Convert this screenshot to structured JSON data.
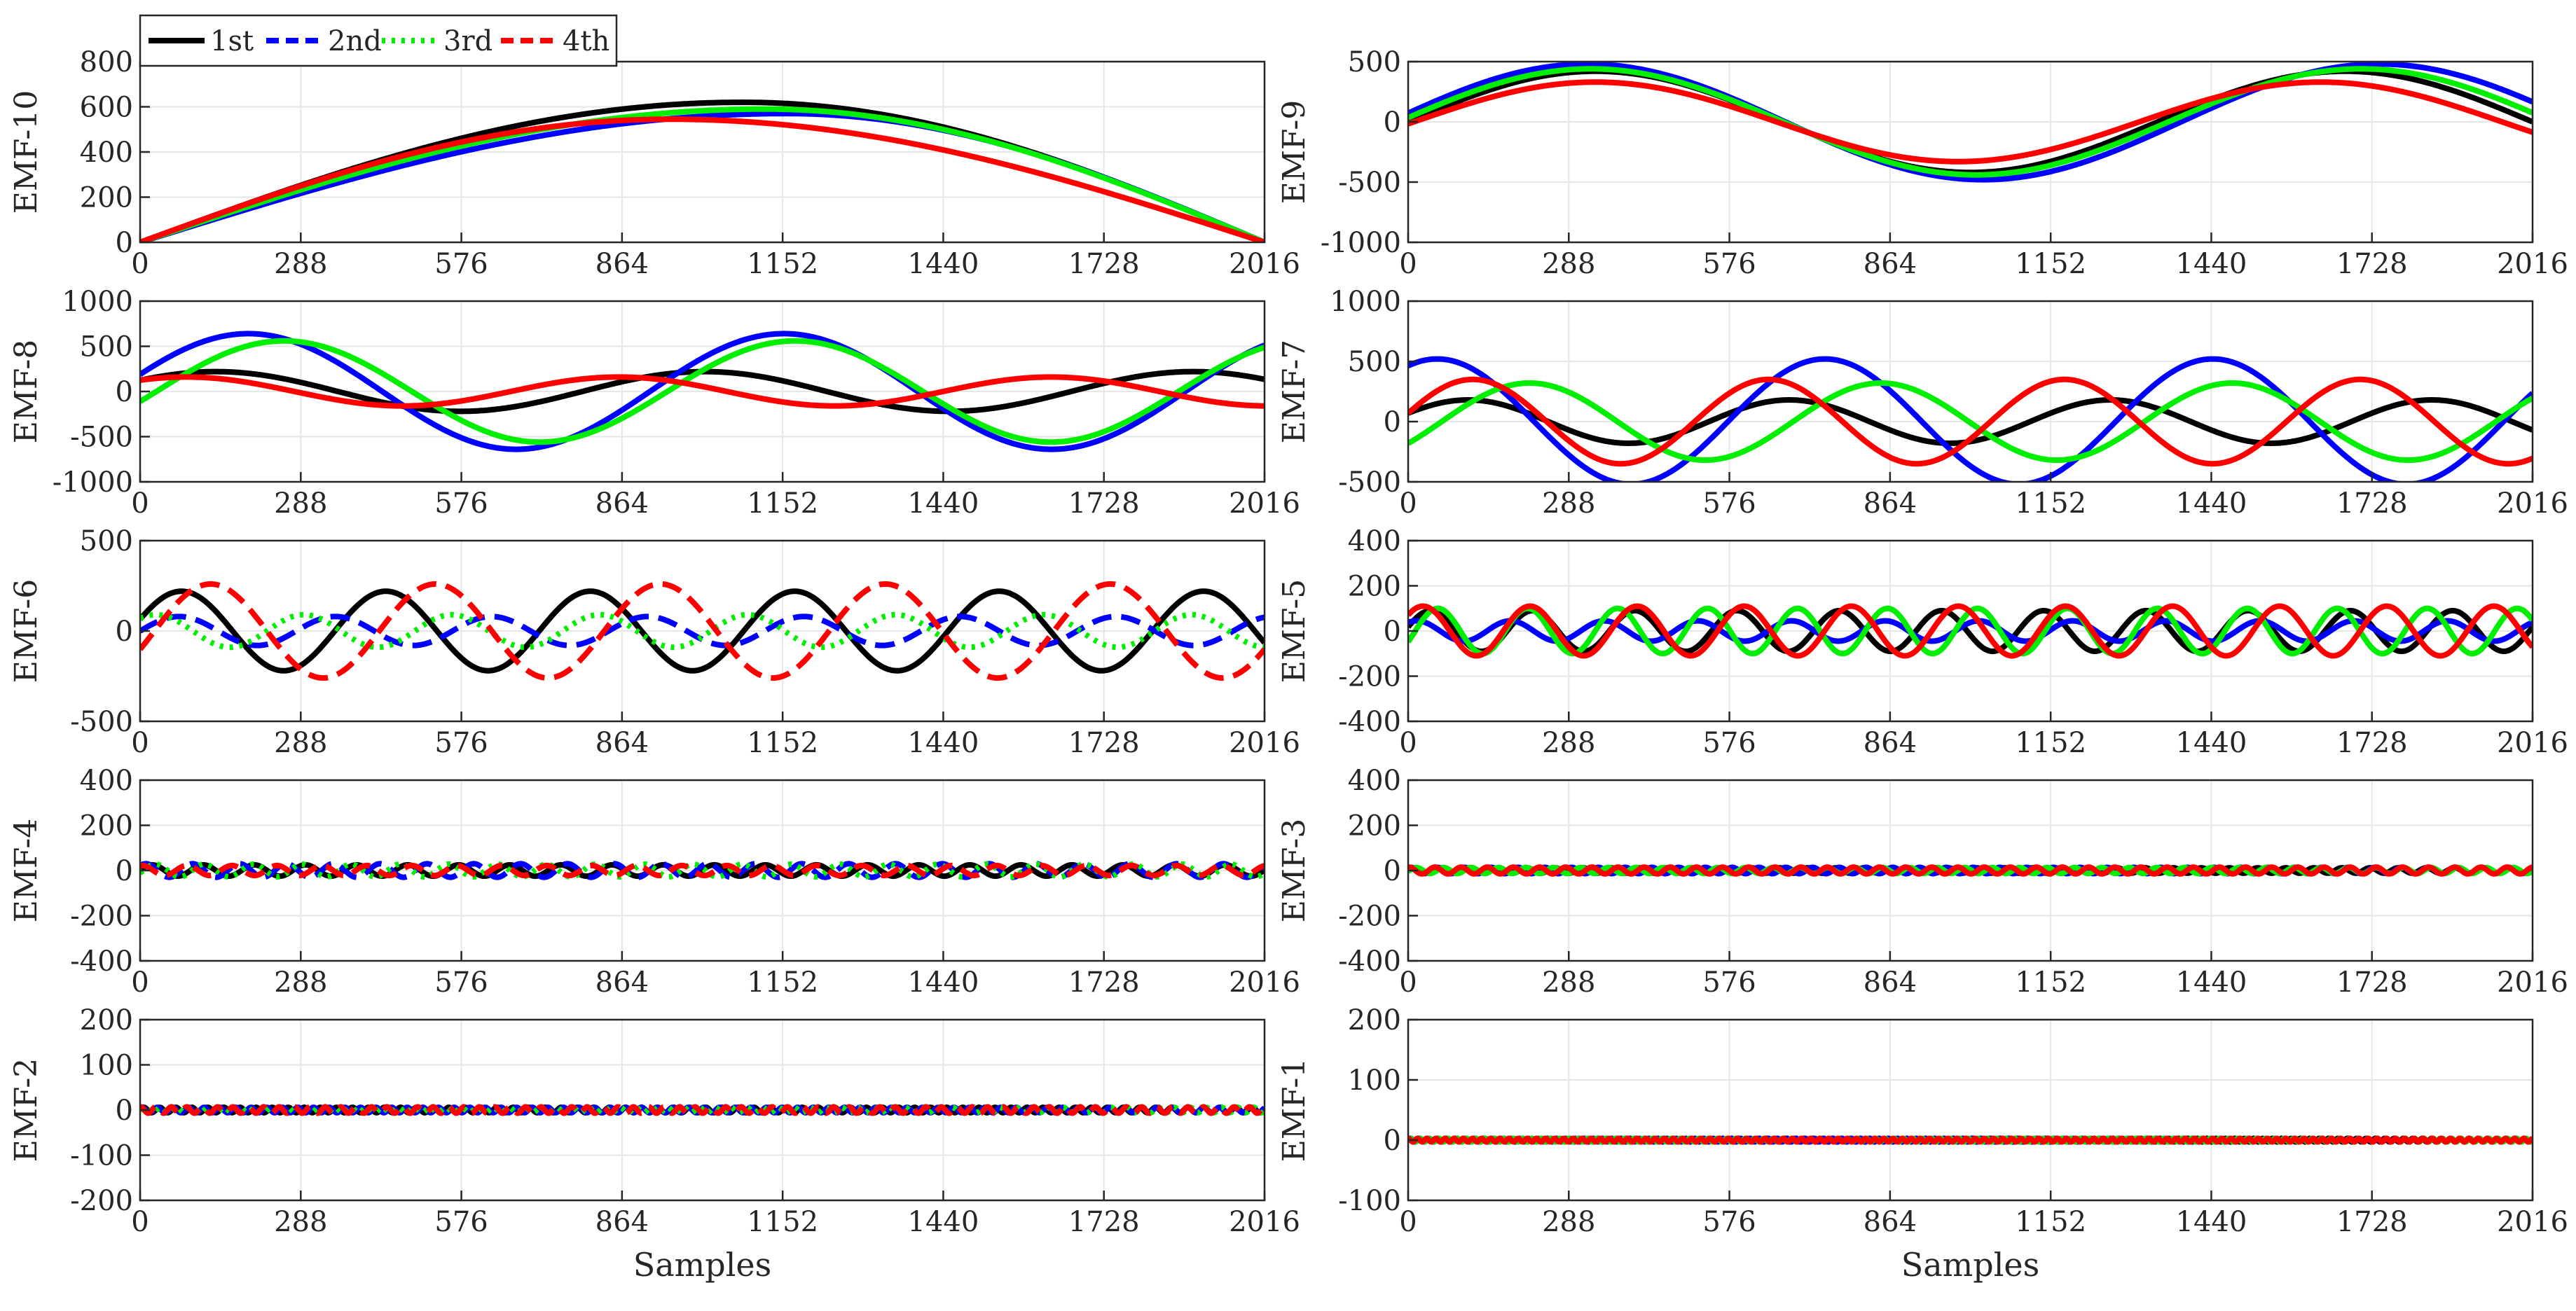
{
  "chart_data": {
    "type": "line",
    "sample_count": 2016,
    "x_ticks": [
      0,
      288,
      576,
      864,
      1152,
      1440,
      1728,
      2016
    ],
    "xlabel": "Samples",
    "legend": {
      "placement": "top-left",
      "entries": [
        {
          "name": "1st",
          "color": "#000000",
          "dash": "solid"
        },
        {
          "name": "2nd",
          "color": "#0000ff",
          "dash": "dashed"
        },
        {
          "name": "3rd",
          "color": "#00ee00",
          "dash": "dotted"
        },
        {
          "name": "4th",
          "color": "#ff0000",
          "dash": "dashed"
        }
      ]
    },
    "panels": [
      {
        "id": "emf10",
        "ylabel": "EMF-10",
        "ylim": [
          0,
          800
        ],
        "yticks": [
          0,
          200,
          400,
          600,
          800
        ],
        "show_xlabel": false,
        "line_styles": [
          "solid",
          "solid",
          "solid",
          "solid"
        ],
        "series": [
          {
            "name": "1st",
            "color": "#000000",
            "type": "arch",
            "params": {
              "amp": 620,
              "peak": 1080
            }
          },
          {
            "name": "2nd",
            "color": "#0000ff",
            "type": "arch",
            "params": {
              "amp": 570,
              "peak": 1160
            }
          },
          {
            "name": "3rd",
            "color": "#00ee00",
            "type": "arch",
            "params": {
              "amp": 590,
              "peak": 1120
            }
          },
          {
            "name": "4th",
            "color": "#ff0000",
            "type": "arch",
            "params": {
              "amp": 545,
              "peak": 950
            }
          }
        ]
      },
      {
        "id": "emf9",
        "ylabel": "EMF-9",
        "ylim": [
          -1000,
          500
        ],
        "yticks": [
          -1000,
          -500,
          0,
          500
        ],
        "show_xlabel": false,
        "line_styles": [
          "solid",
          "solid",
          "solid",
          "solid"
        ],
        "series": [
          {
            "name": "1st",
            "color": "#000000",
            "type": "sine",
            "params": {
              "amp": 420,
              "cycles": 1.5,
              "phase": 0
            }
          },
          {
            "name": "2nd",
            "color": "#0000ff",
            "type": "sine",
            "params": {
              "amp": 480,
              "cycles": 1.42,
              "phase": 0.15
            }
          },
          {
            "name": "3rd",
            "color": "#00ee00",
            "type": "sine",
            "params": {
              "amp": 440,
              "cycles": 1.46,
              "phase": 0.08
            }
          },
          {
            "name": "4th",
            "color": "#ff0000",
            "type": "sine",
            "params": {
              "amp": 330,
              "cycles": 1.55,
              "phase": -0.05
            }
          }
        ]
      },
      {
        "id": "emf8",
        "ylabel": "EMF-8",
        "ylim": [
          -1000,
          1000
        ],
        "yticks": [
          -1000,
          -500,
          0,
          500,
          1000
        ],
        "show_xlabel": false,
        "line_styles": [
          "solid",
          "solid",
          "solid",
          "solid"
        ],
        "series": [
          {
            "name": "1st",
            "color": "#000000",
            "type": "sine",
            "params": {
              "amp": 220,
              "cycles": 2.3,
              "phase": 0.6
            }
          },
          {
            "name": "2nd",
            "color": "#0000ff",
            "type": "sine",
            "params": {
              "amp": 640,
              "cycles": 2.1,
              "phase": 0.3
            }
          },
          {
            "name": "3rd",
            "color": "#00ee00",
            "type": "sine",
            "params": {
              "amp": 560,
              "cycles": 2.2,
              "phase": -0.2
            }
          },
          {
            "name": "4th",
            "color": "#ff0000",
            "type": "sine",
            "params": {
              "amp": 160,
              "cycles": 2.6,
              "phase": 0.9
            }
          }
        ]
      },
      {
        "id": "emf7",
        "ylabel": "EMF-7",
        "ylim": [
          -500,
          1000
        ],
        "yticks": [
          -500,
          0,
          500,
          1000
        ],
        "show_xlabel": false,
        "line_styles": [
          "solid",
          "solid",
          "solid",
          "solid"
        ],
        "series": [
          {
            "name": "1st",
            "color": "#000000",
            "type": "sine",
            "params": {
              "amp": 180,
              "cycles": 3.5,
              "phase": 0.4
            }
          },
          {
            "name": "2nd",
            "color": "#0000ff",
            "type": "sine",
            "params": {
              "amp": 520,
              "cycles": 2.9,
              "phase": 1.1
            }
          },
          {
            "name": "3rd",
            "color": "#00ee00",
            "type": "sine",
            "params": {
              "amp": 320,
              "cycles": 3.2,
              "phase": -0.6
            }
          },
          {
            "name": "4th",
            "color": "#ff0000",
            "type": "sine",
            "params": {
              "amp": 350,
              "cycles": 3.8,
              "phase": 0.2
            }
          }
        ]
      },
      {
        "id": "emf6",
        "ylabel": "EMF-6",
        "ylim": [
          -500,
          500
        ],
        "yticks": [
          -500,
          0,
          500
        ],
        "show_xlabel": false,
        "line_styles": [
          "solid",
          "dashed",
          "dotted",
          "dashed"
        ],
        "series": [
          {
            "name": "1st",
            "color": "#000000",
            "type": "sine",
            "params": {
              "amp": 220,
              "cycles": 5.5,
              "phase": 0.3
            }
          },
          {
            "name": "2nd",
            "color": "#0000ff",
            "type": "sine",
            "params": {
              "amp": 80,
              "cycles": 7.2,
              "phase": 0.0
            }
          },
          {
            "name": "3rd",
            "color": "#00ee00",
            "type": "sine",
            "params": {
              "amp": 90,
              "cycles": 7.6,
              "phase": 0.9
            }
          },
          {
            "name": "4th",
            "color": "#ff0000",
            "type": "sine",
            "params": {
              "amp": 260,
              "cycles": 5.0,
              "phase": -0.4
            }
          }
        ]
      },
      {
        "id": "emf5",
        "ylabel": "EMF-5",
        "ylim": [
          -400,
          400
        ],
        "yticks": [
          -400,
          -200,
          0,
          200,
          400
        ],
        "show_xlabel": false,
        "line_styles": [
          "solid",
          "solid",
          "solid",
          "solid"
        ],
        "series": [
          {
            "name": "1st",
            "color": "#000000",
            "type": "sine",
            "params": {
              "amp": 90,
              "cycles": 11,
              "phase": 0.2
            }
          },
          {
            "name": "2nd",
            "color": "#0000ff",
            "type": "sine",
            "params": {
              "amp": 45,
              "cycles": 12,
              "phase": 1.0
            }
          },
          {
            "name": "3rd",
            "color": "#00ee00",
            "type": "sine",
            "params": {
              "amp": 100,
              "cycles": 12.5,
              "phase": -0.5
            }
          },
          {
            "name": "4th",
            "color": "#ff0000",
            "type": "sine",
            "params": {
              "amp": 110,
              "cycles": 10.5,
              "phase": 0.7
            }
          }
        ]
      },
      {
        "id": "emf4",
        "ylabel": "EMF-4",
        "ylim": [
          -400,
          400
        ],
        "yticks": [
          -400,
          -200,
          0,
          200,
          400
        ],
        "show_xlabel": false,
        "line_styles": [
          "solid",
          "dashed",
          "dotted",
          "dashed"
        ],
        "series": [
          {
            "name": "1st",
            "color": "#000000",
            "type": "sine",
            "params": {
              "amp": 25,
              "cycles": 22,
              "phase": 0.1
            }
          },
          {
            "name": "2nd",
            "color": "#0000ff",
            "type": "sine",
            "params": {
              "amp": 30,
              "cycles": 24,
              "phase": 0.8
            }
          },
          {
            "name": "3rd",
            "color": "#00ee00",
            "type": "sine",
            "params": {
              "amp": 28,
              "cycles": 23,
              "phase": -0.4
            }
          },
          {
            "name": "4th",
            "color": "#ff0000",
            "type": "sine",
            "params": {
              "amp": 22,
              "cycles": 25,
              "phase": 1.3
            }
          }
        ]
      },
      {
        "id": "emf3",
        "ylabel": "EMF-3",
        "ylim": [
          -400,
          400
        ],
        "yticks": [
          -400,
          -200,
          0,
          200,
          400
        ],
        "show_xlabel": false,
        "line_styles": [
          "solid",
          "solid",
          "solid",
          "solid"
        ],
        "series": [
          {
            "name": "1st",
            "color": "#000000",
            "type": "sine",
            "params": {
              "amp": 12,
              "cycles": 40,
              "phase": 0.2
            }
          },
          {
            "name": "2nd",
            "color": "#0000ff",
            "type": "sine",
            "params": {
              "amp": 14,
              "cycles": 42,
              "phase": 0.9
            }
          },
          {
            "name": "3rd",
            "color": "#00ee00",
            "type": "sine",
            "params": {
              "amp": 13,
              "cycles": 41,
              "phase": -0.3
            }
          },
          {
            "name": "4th",
            "color": "#ff0000",
            "type": "sine",
            "params": {
              "amp": 15,
              "cycles": 43,
              "phase": 1.4
            }
          }
        ]
      },
      {
        "id": "emf2",
        "ylabel": "EMF-2",
        "ylim": [
          -200,
          200
        ],
        "yticks": [
          -200,
          -100,
          0,
          100,
          200
        ],
        "show_xlabel": true,
        "line_styles": [
          "solid",
          "solid",
          "dotted",
          "dashed"
        ],
        "series": [
          {
            "name": "1st",
            "color": "#000000",
            "type": "sine",
            "params": {
              "amp": 6,
              "cycles": 70,
              "phase": 0.2
            }
          },
          {
            "name": "2nd",
            "color": "#0000ff",
            "type": "sine",
            "params": {
              "amp": 6,
              "cycles": 72,
              "phase": 0.9
            }
          },
          {
            "name": "3rd",
            "color": "#00ee00",
            "type": "sine",
            "params": {
              "amp": 6,
              "cycles": 71,
              "phase": -0.3
            }
          },
          {
            "name": "4th",
            "color": "#ff0000",
            "type": "sine",
            "params": {
              "amp": 7,
              "cycles": 73,
              "phase": 1.4
            }
          }
        ]
      },
      {
        "id": "emf1",
        "ylabel": "EMF-1",
        "ylim": [
          -100,
          200
        ],
        "yticks": [
          -100,
          0,
          100,
          200
        ],
        "show_xlabel": true,
        "line_styles": [
          "solid",
          "solid",
          "solid",
          "solid"
        ],
        "series": [
          {
            "name": "1st",
            "color": "#000000",
            "type": "sine",
            "params": {
              "amp": 3,
              "cycles": 120,
              "phase": 0.2
            }
          },
          {
            "name": "2nd",
            "color": "#0000ff",
            "type": "sine",
            "params": {
              "amp": 3,
              "cycles": 122,
              "phase": 0.9
            }
          },
          {
            "name": "3rd",
            "color": "#00ee00",
            "type": "sine",
            "params": {
              "amp": 3,
              "cycles": 121,
              "phase": -0.3
            }
          },
          {
            "name": "4th",
            "color": "#ff0000",
            "type": "sine",
            "params": {
              "amp": 3,
              "cycles": 123,
              "phase": 1.4
            }
          }
        ]
      }
    ]
  }
}
